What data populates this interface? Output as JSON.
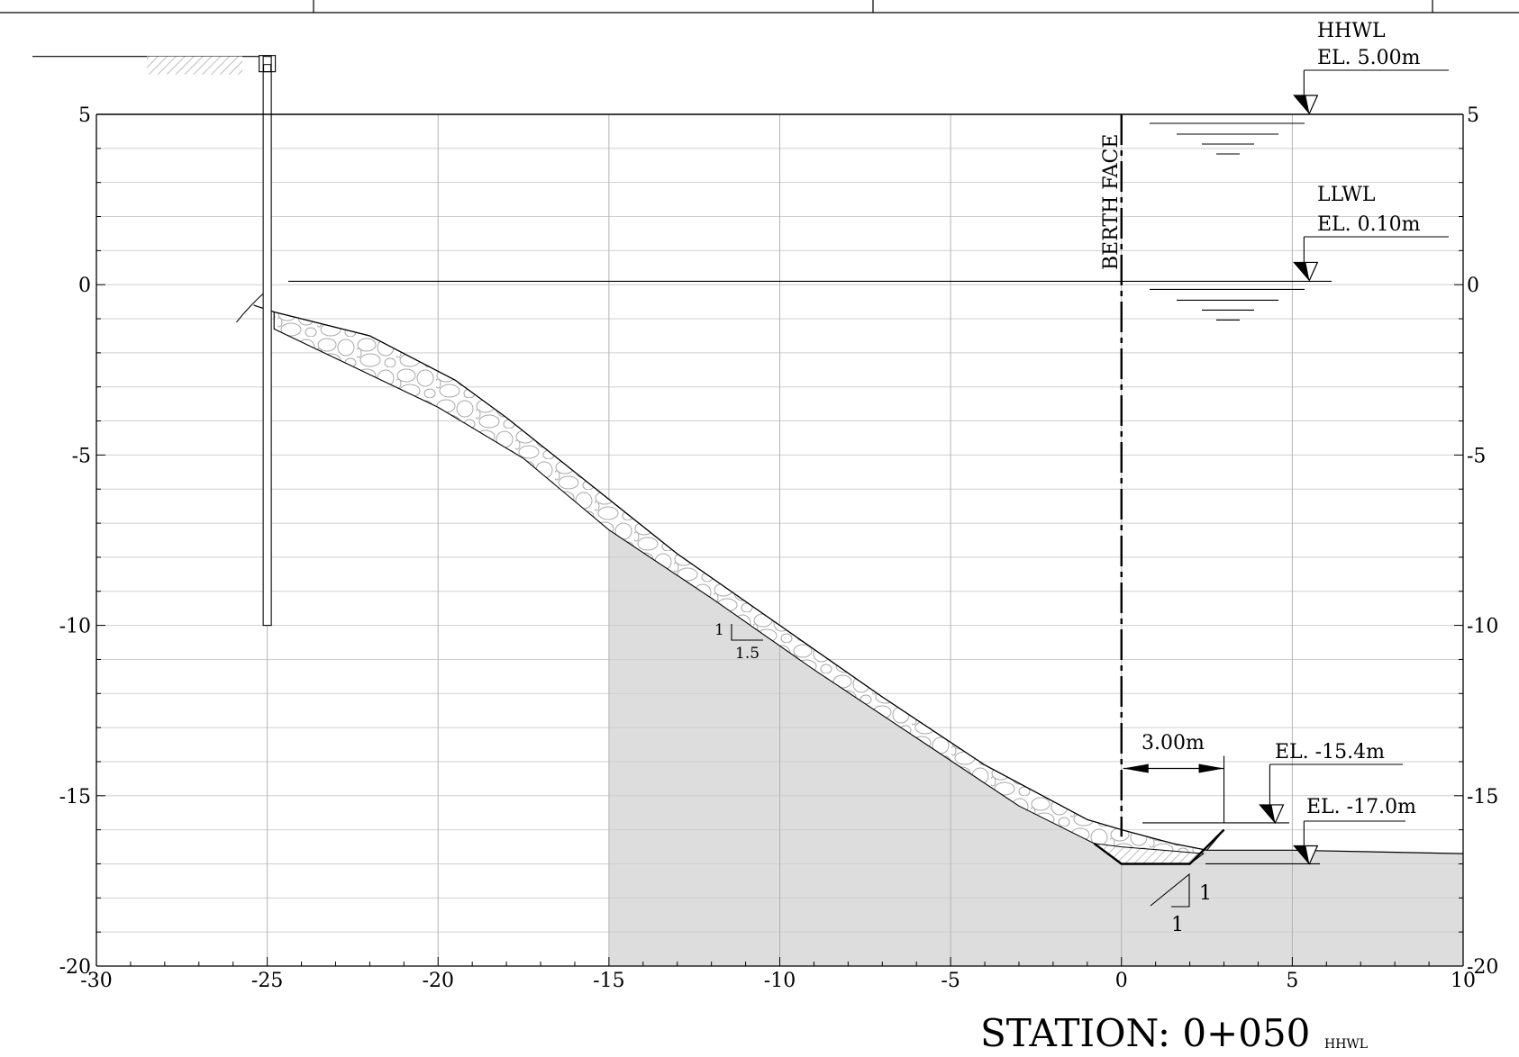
{
  "title_block": {
    "cells": [
      "",
      "",
      "",
      ""
    ]
  },
  "chart_data": {
    "type": "cross-section",
    "xlim": [
      -30,
      10
    ],
    "ylim": [
      -20,
      5
    ],
    "x_ticks": [
      -30,
      -25,
      -20,
      -15,
      -10,
      -5,
      0,
      5,
      10
    ],
    "x_tick_labels": [
      "-30",
      "-25",
      "-20",
      "-15",
      "-10",
      "-5",
      "0",
      "5",
      "10"
    ],
    "y_ticks": [
      -20,
      -15,
      -10,
      -5,
      0,
      5
    ],
    "y_tick_labels": [
      "-20",
      "-15",
      "-10",
      "-5",
      "0",
      "5"
    ],
    "minor_grid_y_step": 1,
    "grid": true,
    "slope_outer": [
      [
        -25.4,
        -0.6
      ],
      [
        -24.8,
        -0.8
      ],
      [
        -22,
        -1.5
      ],
      [
        -19.5,
        -2.8
      ],
      [
        -18,
        -3.9
      ],
      [
        -15,
        -6.3
      ],
      [
        -13,
        -7.9
      ],
      [
        -10,
        -10.0
      ],
      [
        -7,
        -12.1
      ],
      [
        -4,
        -14.1
      ],
      [
        -1,
        -15.7
      ],
      [
        0,
        -16.0
      ],
      [
        1.5,
        -16.4
      ],
      [
        2.5,
        -16.6
      ],
      [
        5,
        -16.6
      ],
      [
        10,
        -16.7
      ]
    ],
    "slope_inner": [
      [
        -24.8,
        -1.3
      ],
      [
        -22.5,
        -2.4
      ],
      [
        -20,
        -3.6
      ],
      [
        -17.5,
        -5.1
      ],
      [
        -15,
        -7.2
      ],
      [
        -12,
        -9.2
      ],
      [
        -9,
        -11.3
      ],
      [
        -6,
        -13.3
      ],
      [
        -3,
        -15.3
      ],
      [
        -0.8,
        -16.4
      ],
      [
        0,
        -17.0
      ],
      [
        2,
        -17.0
      ],
      [
        3,
        -16.0
      ]
    ],
    "seabed_fill_left_x": -15,
    "sheet_pile": {
      "x": -25,
      "top": 6.7,
      "bottom": -10
    },
    "ground_line": {
      "x_start": -37.5,
      "x_end": -25,
      "y": 6.7
    },
    "berth_face_x": 0,
    "dredge_bottom": {
      "x_from": 0,
      "x_to": 2,
      "elevation": -17.0
    },
    "dimension": {
      "x_from": 0,
      "x_to": 3,
      "y": -14.2
    },
    "water_levels": [
      {
        "name": "HHWL",
        "label": "EL. 5.00m",
        "elevation": 5.0
      },
      {
        "name": "LLWL",
        "label": "EL. 0.10m",
        "elevation": 0.1
      }
    ],
    "slope_ratio": {
      "rise": "1",
      "run": "1.5"
    },
    "toe_slope": {
      "rise": "1",
      "run": "1"
    }
  },
  "labels": {
    "hhwl_name": "HHWL",
    "hhwl_el": "EL. 5.00m",
    "llwl_name": "LLWL",
    "llwl_el": "EL. 0.10m",
    "berth_face": "BERTH FACE",
    "dim_text": "3.00m",
    "el_15": "EL. -15.4m",
    "el_17": "EL. -17.0m",
    "slope_rise": "1",
    "slope_run": "1.5",
    "toe_rise": "1",
    "toe_run": "1",
    "station": "STATION: 0+050",
    "hhwl_small": "HHWL"
  }
}
